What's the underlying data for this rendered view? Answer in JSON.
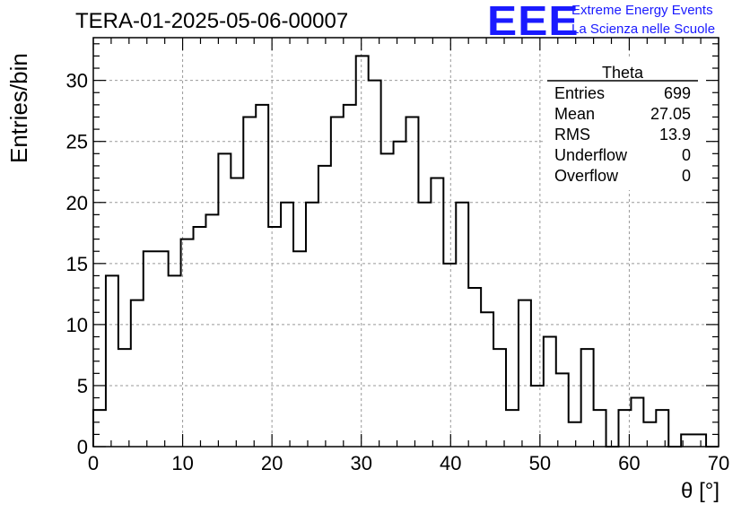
{
  "title": "TERA-01-2025-05-06-00007",
  "logo": {
    "mark": "EEE",
    "line1": "Extreme Energy Events",
    "line2": "La Scienza nelle Scuole",
    "color": "#1a1aff"
  },
  "stats": {
    "name": "Theta",
    "rows": [
      {
        "label": "Entries",
        "value": "699"
      },
      {
        "label": "Mean",
        "value": "27.05"
      },
      {
        "label": "RMS",
        "value": "13.9"
      },
      {
        "label": "Underflow",
        "value": "0"
      },
      {
        "label": "Overflow",
        "value": "0"
      }
    ]
  },
  "chart_data": {
    "type": "bar",
    "subtype": "step-histogram",
    "xlabel": "θ [°]",
    "ylabel": "Entries/bin",
    "xlim": [
      0,
      70
    ],
    "ylim": [
      0,
      33.5
    ],
    "bin_width": 1.4,
    "x_ticks": [
      0,
      10,
      20,
      30,
      40,
      50,
      60,
      70
    ],
    "y_ticks": [
      0,
      5,
      10,
      15,
      20,
      25,
      30
    ],
    "grid": true,
    "values": [
      3,
      14,
      8,
      12,
      16,
      16,
      14,
      17,
      18,
      19,
      24,
      22,
      27,
      28,
      18,
      20,
      16,
      20,
      23,
      27,
      28,
      32,
      30,
      24,
      25,
      27,
      20,
      22,
      15,
      20,
      13,
      11,
      8,
      3,
      12,
      5,
      9,
      6,
      2,
      8,
      3,
      0,
      3,
      4,
      2,
      3,
      0,
      1,
      1,
      0
    ]
  }
}
